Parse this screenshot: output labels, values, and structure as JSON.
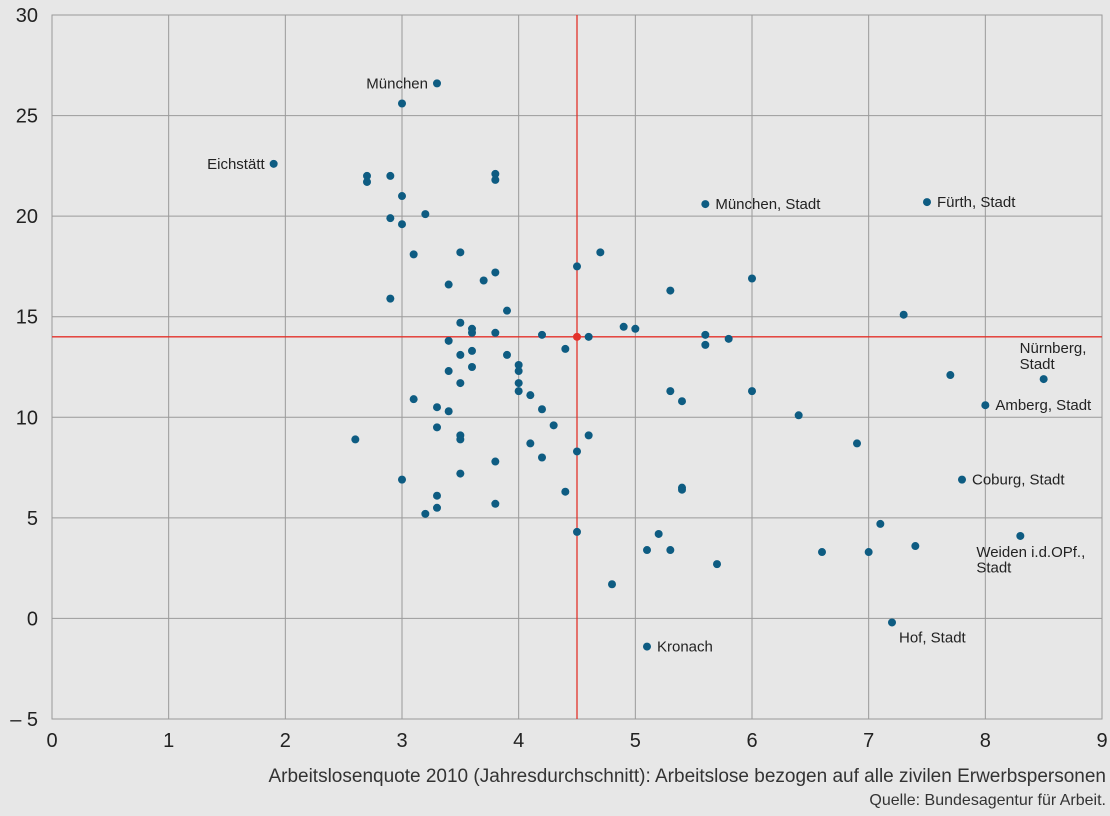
{
  "chart_data": {
    "type": "scatter",
    "title": "",
    "xlabel": "Arbeitslosenquote 2010 (Jahresdurchschnitt): Arbeitslose bezogen auf alle zivilen Erwerbspersonen",
    "ylabel": "",
    "source": "Quelle: Bundesagentur für Arbeit.",
    "xlim": [
      0,
      9
    ],
    "ylim": [
      -5,
      30
    ],
    "x_ticks": [
      0,
      1,
      2,
      3,
      4,
      5,
      6,
      7,
      8,
      9
    ],
    "y_ticks": [
      -5,
      0,
      5,
      10,
      15,
      20,
      25,
      30
    ],
    "y_tick_labels": [
      "– 5",
      "0",
      "5",
      "10",
      "15",
      "20",
      "25",
      "30"
    ],
    "grid": true,
    "reference_lines": {
      "x": 4.5,
      "y": 14.0,
      "color": "#e3322b"
    },
    "mean_point": {
      "x": 4.5,
      "y": 14.0,
      "color": "#e3322b"
    },
    "colors": {
      "points": "#0e5c82",
      "background": "#e7e7e7",
      "grid": "#9a9a9a",
      "reference": "#e3322b"
    },
    "points": [
      {
        "x": 3.3,
        "y": 26.6,
        "label": "München",
        "anchor": "left"
      },
      {
        "x": 3.0,
        "y": 25.6
      },
      {
        "x": 1.9,
        "y": 22.6,
        "label": "Eichstätt",
        "anchor": "left"
      },
      {
        "x": 2.7,
        "y": 22.0
      },
      {
        "x": 2.7,
        "y": 21.7
      },
      {
        "x": 2.9,
        "y": 22.0
      },
      {
        "x": 3.0,
        "y": 21.0
      },
      {
        "x": 3.8,
        "y": 22.1
      },
      {
        "x": 3.8,
        "y": 21.8
      },
      {
        "x": 2.9,
        "y": 19.9
      },
      {
        "x": 3.0,
        "y": 19.6
      },
      {
        "x": 3.2,
        "y": 20.1
      },
      {
        "x": 3.1,
        "y": 18.1
      },
      {
        "x": 3.5,
        "y": 18.2
      },
      {
        "x": 2.9,
        "y": 15.9
      },
      {
        "x": 3.4,
        "y": 16.6
      },
      {
        "x": 3.7,
        "y": 16.8
      },
      {
        "x": 3.8,
        "y": 17.2
      },
      {
        "x": 3.9,
        "y": 15.3
      },
      {
        "x": 3.5,
        "y": 14.7
      },
      {
        "x": 3.6,
        "y": 14.4
      },
      {
        "x": 3.6,
        "y": 14.2
      },
      {
        "x": 3.8,
        "y": 14.2
      },
      {
        "x": 3.4,
        "y": 13.8
      },
      {
        "x": 3.5,
        "y": 13.1
      },
      {
        "x": 3.6,
        "y": 13.3
      },
      {
        "x": 3.9,
        "y": 13.1
      },
      {
        "x": 3.4,
        "y": 12.3
      },
      {
        "x": 3.6,
        "y": 12.5
      },
      {
        "x": 3.5,
        "y": 11.7
      },
      {
        "x": 4.0,
        "y": 12.6
      },
      {
        "x": 4.0,
        "y": 12.3
      },
      {
        "x": 4.0,
        "y": 11.7
      },
      {
        "x": 4.0,
        "y": 11.3
      },
      {
        "x": 4.1,
        "y": 11.1
      },
      {
        "x": 3.1,
        "y": 10.9
      },
      {
        "x": 3.3,
        "y": 10.5
      },
      {
        "x": 3.4,
        "y": 10.3
      },
      {
        "x": 4.2,
        "y": 10.4
      },
      {
        "x": 3.3,
        "y": 9.5
      },
      {
        "x": 3.5,
        "y": 9.1
      },
      {
        "x": 3.5,
        "y": 8.9
      },
      {
        "x": 4.3,
        "y": 9.6
      },
      {
        "x": 4.1,
        "y": 8.7
      },
      {
        "x": 2.6,
        "y": 8.9
      },
      {
        "x": 4.2,
        "y": 8.0
      },
      {
        "x": 3.8,
        "y": 7.8
      },
      {
        "x": 3.5,
        "y": 7.2
      },
      {
        "x": 3.0,
        "y": 6.9
      },
      {
        "x": 4.4,
        "y": 6.3
      },
      {
        "x": 3.3,
        "y": 6.1
      },
      {
        "x": 3.8,
        "y": 5.7
      },
      {
        "x": 3.3,
        "y": 5.5
      },
      {
        "x": 3.2,
        "y": 5.2
      },
      {
        "x": 4.2,
        "y": 14.1
      },
      {
        "x": 4.4,
        "y": 13.4
      },
      {
        "x": 4.5,
        "y": 17.5
      },
      {
        "x": 4.7,
        "y": 18.2
      },
      {
        "x": 4.6,
        "y": 14.0
      },
      {
        "x": 4.9,
        "y": 14.5
      },
      {
        "x": 5.0,
        "y": 14.4
      },
      {
        "x": 5.3,
        "y": 16.3
      },
      {
        "x": 5.6,
        "y": 20.6,
        "label": "München, Stadt",
        "anchor": "right"
      },
      {
        "x": 5.6,
        "y": 14.1
      },
      {
        "x": 5.6,
        "y": 13.6
      },
      {
        "x": 5.8,
        "y": 13.9
      },
      {
        "x": 6.0,
        "y": 16.9
      },
      {
        "x": 7.3,
        "y": 15.1
      },
      {
        "x": 7.5,
        "y": 20.7,
        "label": "Fürth, Stadt",
        "anchor": "right"
      },
      {
        "x": 5.3,
        "y": 11.3
      },
      {
        "x": 5.4,
        "y": 10.8
      },
      {
        "x": 6.0,
        "y": 11.3
      },
      {
        "x": 6.4,
        "y": 10.1
      },
      {
        "x": 4.6,
        "y": 9.1
      },
      {
        "x": 4.5,
        "y": 8.3
      },
      {
        "x": 5.4,
        "y": 6.5
      },
      {
        "x": 5.4,
        "y": 6.4
      },
      {
        "x": 6.9,
        "y": 8.7
      },
      {
        "x": 7.7,
        "y": 12.1
      },
      {
        "x": 8.5,
        "y": 11.9,
        "label": "Nürnberg, Stadt",
        "anchor": "above-left"
      },
      {
        "x": 8.0,
        "y": 10.6,
        "label": "Amberg, Stadt",
        "anchor": "right"
      },
      {
        "x": 7.8,
        "y": 6.9,
        "label": "Coburg, Stadt",
        "anchor": "right"
      },
      {
        "x": 4.5,
        "y": 4.3
      },
      {
        "x": 5.2,
        "y": 4.2
      },
      {
        "x": 5.1,
        "y": 3.4
      },
      {
        "x": 5.3,
        "y": 3.4
      },
      {
        "x": 5.7,
        "y": 2.7
      },
      {
        "x": 4.8,
        "y": 1.7
      },
      {
        "x": 6.6,
        "y": 3.3
      },
      {
        "x": 7.0,
        "y": 3.3
      },
      {
        "x": 7.1,
        "y": 4.7
      },
      {
        "x": 7.4,
        "y": 3.6
      },
      {
        "x": 8.3,
        "y": 4.1,
        "label": "Weiden i.d.OPf., Stadt",
        "anchor": "below-left"
      },
      {
        "x": 7.2,
        "y": -0.2,
        "label": "Hof, Stadt",
        "anchor": "below-right"
      },
      {
        "x": 5.1,
        "y": -1.4,
        "label": "Kronach",
        "anchor": "right"
      }
    ]
  }
}
